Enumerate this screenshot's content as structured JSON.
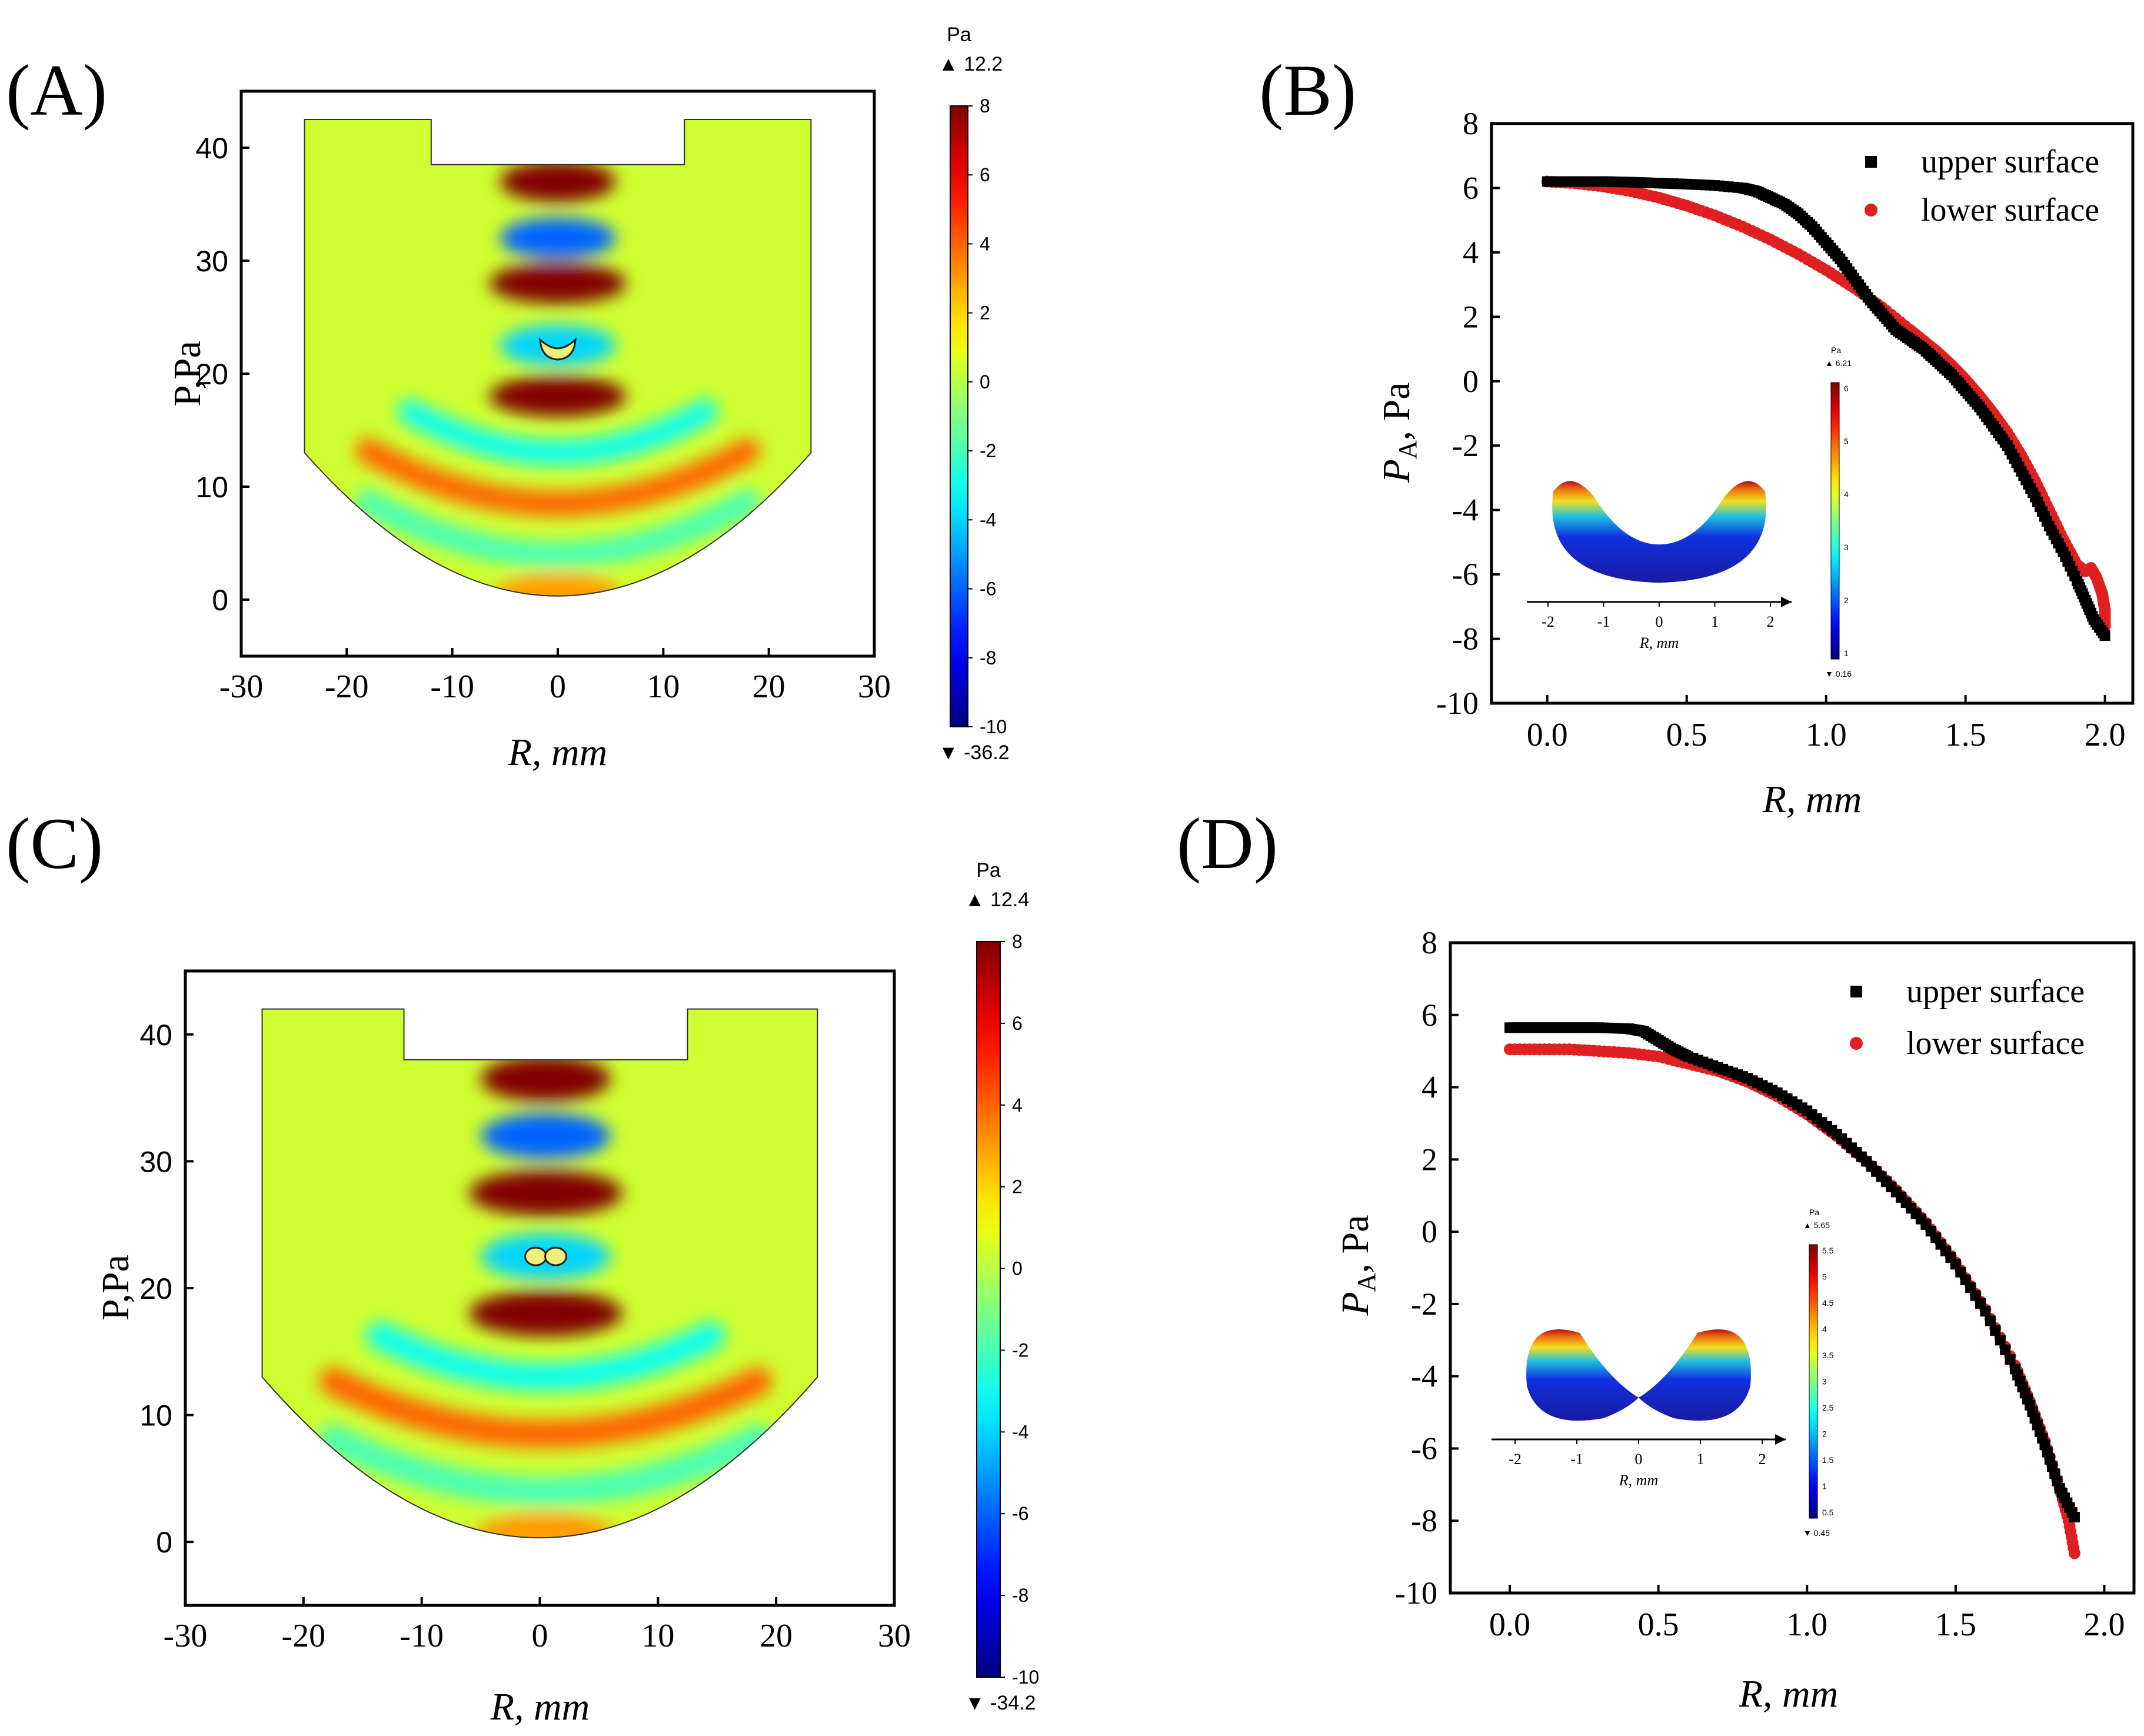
{
  "panels": [
    {
      "label": "(A)",
      "chart_data": {
        "type": "heatmap",
        "xlabel": "R, mm",
        "ylabel": "P,Pa",
        "xlim": [
          -30,
          30
        ],
        "ylim": [
          -5,
          45
        ],
        "xticks": [
          -30,
          -20,
          -10,
          0,
          10,
          20,
          30
        ],
        "yticks": [
          0,
          10,
          20,
          30,
          40
        ],
        "colorbar": {
          "unit": "Pa",
          "max_label": "▲ 12.2",
          "min_label": "▼ -36.2",
          "ticks": [
            8,
            6,
            4,
            2,
            0,
            -2,
            -4,
            -6,
            -8,
            -10
          ],
          "range": [
            -10,
            8
          ]
        },
        "field": {
          "domain_x": [
            -24,
            24
          ],
          "domain_top": 42.5,
          "transducer_x": [
            -12,
            12
          ],
          "transducer_face_y": 38.5,
          "arc_bottom_y": 0,
          "wall_y": 13,
          "bands": [
            {
              "y": 37,
              "value": 8,
              "half_width": 5.5
            },
            {
              "y": 32,
              "value": -6,
              "half_width": 5.5
            },
            {
              "y": 28,
              "value": 8,
              "half_width": 6.5
            },
            {
              "y": 22.5,
              "value": -4,
              "half_width": 5.5
            },
            {
              "y": 18,
              "value": 8,
              "half_width": 6.5
            },
            {
              "y": 13,
              "value": -3,
              "half_width": 14
            },
            {
              "y": 8.5,
              "value": 4,
              "half_width": 18
            },
            {
              "y": 4,
              "value": -2,
              "half_width": 18
            },
            {
              "y": 0.5,
              "value": 3,
              "half_width": 6
            }
          ],
          "droplet": {
            "x": 0,
            "y": 22.5,
            "shape": "cup"
          }
        }
      }
    },
    {
      "label": "(B)",
      "chart_data": {
        "type": "scatter",
        "xlabel": "R, mm",
        "ylabel": "P_A, Pa",
        "xlim": [
          -0.2,
          2.1
        ],
        "ylim": [
          -10,
          8
        ],
        "xticks": [
          0.0,
          0.5,
          1.0,
          1.5,
          2.0
        ],
        "xtick_labels": [
          "0.0",
          "0.5",
          "1.0",
          "1.5",
          "2.0"
        ],
        "yticks": [
          8,
          6,
          4,
          2,
          0,
          -2,
          -4,
          -6,
          -8,
          -10
        ],
        "series": [
          {
            "name": "upper surface",
            "color": "#000000",
            "marker": "square",
            "x": [
              0,
              0.1,
              0.2,
              0.3,
              0.4,
              0.5,
              0.6,
              0.7,
              0.75,
              0.8,
              0.85,
              0.9,
              0.95,
              1.0,
              1.05,
              1.1,
              1.15,
              1.2,
              1.25,
              1.3,
              1.35,
              1.4,
              1.45,
              1.5,
              1.55,
              1.6,
              1.65,
              1.7,
              1.75,
              1.8,
              1.85,
              1.9,
              1.93,
              1.96,
              2.0
            ],
            "y": [
              6.2,
              6.2,
              6.2,
              6.18,
              6.15,
              6.12,
              6.08,
              6.0,
              5.9,
              5.7,
              5.5,
              5.2,
              4.8,
              4.3,
              3.8,
              3.2,
              2.6,
              2.1,
              1.6,
              1.3,
              1.0,
              0.6,
              0.2,
              -0.3,
              -0.8,
              -1.4,
              -2.0,
              -2.8,
              -3.6,
              -4.5,
              -5.3,
              -6.2,
              -6.8,
              -7.4,
              -7.9
            ]
          },
          {
            "name": "lower surface",
            "color": "#e02020",
            "marker": "circle",
            "x": [
              0,
              0.1,
              0.2,
              0.3,
              0.4,
              0.5,
              0.6,
              0.7,
              0.8,
              0.9,
              1.0,
              1.1,
              1.2,
              1.3,
              1.35,
              1.4,
              1.45,
              1.5,
              1.55,
              1.6,
              1.65,
              1.7,
              1.75,
              1.8,
              1.85,
              1.9,
              1.93,
              1.95,
              1.97,
              1.99,
              2.0,
              2.0
            ],
            "y": [
              6.2,
              6.15,
              6.05,
              5.9,
              5.7,
              5.45,
              5.15,
              4.8,
              4.4,
              3.95,
              3.45,
              2.9,
              2.3,
              1.6,
              1.25,
              0.9,
              0.5,
              0.05,
              -0.45,
              -1.0,
              -1.6,
              -2.3,
              -3.1,
              -4.0,
              -4.9,
              -5.7,
              -5.9,
              -5.8,
              -6.1,
              -6.6,
              -7.1,
              -7.6
            ]
          }
        ],
        "legend": "top-right",
        "inset": {
          "axis_ticks": [
            -2,
            -1,
            0,
            1,
            2
          ],
          "xlabel": "R, mm",
          "unit": "Pa",
          "max_label": "▲ 6.21",
          "min_label": "▼ 0.16",
          "ticks": [
            "6",
            "5",
            "4",
            "3",
            "2",
            "1"
          ],
          "shape": "cup"
        }
      }
    },
    {
      "label": "(C)",
      "chart_data": {
        "type": "heatmap",
        "xlabel": "R, mm",
        "ylabel": "P,Pa",
        "xlim": [
          -30,
          30
        ],
        "ylim": [
          -5,
          45
        ],
        "xticks": [
          -30,
          -20,
          -10,
          0,
          10,
          20,
          30
        ],
        "yticks": [
          0,
          10,
          20,
          30,
          40
        ],
        "colorbar": {
          "unit": "Pa",
          "max_label": "▲ 12.4",
          "min_label": "▼ -34.2",
          "ticks": [
            8,
            6,
            4,
            2,
            0,
            -2,
            -4,
            -6,
            -8,
            -10
          ],
          "range": [
            -10,
            8
          ]
        },
        "field": {
          "domain_x": [
            -23.5,
            23.5
          ],
          "domain_top": 42,
          "transducer_x": [
            -11.5,
            12.5
          ],
          "transducer_face_y": 38,
          "arc_bottom_y": 0,
          "wall_y": 13,
          "bands": [
            {
              "y": 36.5,
              "value": 8,
              "half_width": 5.5
            },
            {
              "y": 32,
              "value": -6,
              "half_width": 5.5
            },
            {
              "y": 27.5,
              "value": 8,
              "half_width": 6.5
            },
            {
              "y": 22.5,
              "value": -4,
              "half_width": 5.5
            },
            {
              "y": 18,
              "value": 8,
              "half_width": 6.5
            },
            {
              "y": 13,
              "value": -3,
              "half_width": 14
            },
            {
              "y": 8.5,
              "value": 4,
              "half_width": 18
            },
            {
              "y": 4,
              "value": -2,
              "half_width": 18
            },
            {
              "y": 0.5,
              "value": 3,
              "half_width": 6
            }
          ],
          "droplet": {
            "x": 0.5,
            "y": 22.5,
            "shape": "pinch"
          }
        }
      }
    },
    {
      "label": "(D)",
      "chart_data": {
        "type": "scatter",
        "xlabel": "R, mm",
        "ylabel": "P_A, Pa",
        "xlim": [
          -0.2,
          2.1
        ],
        "ylim": [
          -10,
          8
        ],
        "xticks": [
          0.0,
          0.5,
          1.0,
          1.5,
          2.0
        ],
        "xtick_labels": [
          "0.0",
          "0.5",
          "1.0",
          "1.5",
          "2.0"
        ],
        "yticks": [
          8,
          6,
          4,
          2,
          0,
          -2,
          -4,
          -6,
          -8,
          -10
        ],
        "series": [
          {
            "name": "upper surface",
            "color": "#000000",
            "marker": "square",
            "x": [
              0,
              0.1,
              0.2,
              0.3,
              0.4,
              0.45,
              0.5,
              0.55,
              0.6,
              0.7,
              0.8,
              0.9,
              1.0,
              1.1,
              1.2,
              1.3,
              1.4,
              1.5,
              1.6,
              1.7,
              1.75,
              1.8,
              1.85,
              1.9
            ],
            "y": [
              5.65,
              5.65,
              5.65,
              5.65,
              5.62,
              5.55,
              5.3,
              5.05,
              4.85,
              4.55,
              4.25,
              3.85,
              3.35,
              2.7,
              1.95,
              1.1,
              0.2,
              -0.9,
              -2.2,
              -3.8,
              -4.8,
              -5.9,
              -7.1,
              -7.9
            ]
          },
          {
            "name": "lower surface",
            "color": "#e02020",
            "marker": "circle",
            "x": [
              0,
              0.1,
              0.2,
              0.3,
              0.4,
              0.5,
              0.6,
              0.7,
              0.8,
              0.9,
              1.0,
              1.1,
              1.2,
              1.3,
              1.4,
              1.5,
              1.6,
              1.7,
              1.75,
              1.8,
              1.85,
              1.88,
              1.9
            ],
            "y": [
              5.05,
              5.05,
              5.05,
              5.0,
              4.95,
              4.85,
              4.65,
              4.45,
              4.15,
              3.75,
              3.25,
              2.65,
              1.95,
              1.15,
              0.25,
              -0.85,
              -2.15,
              -3.7,
              -4.7,
              -5.8,
              -7.1,
              -8.0,
              -8.9
            ]
          }
        ],
        "legend": "top-right",
        "inset": {
          "axis_ticks": [
            -2,
            -1,
            0,
            1,
            2
          ],
          "xlabel": "R, mm",
          "unit": "Pa",
          "max_label": "▲ 5.65",
          "min_label": "▼ 0.45",
          "ticks": [
            "5.5",
            "5",
            "4.5",
            "4",
            "3.5",
            "3",
            "2.5",
            "2",
            "1.5",
            "1",
            "0.5"
          ],
          "shape": "pinch"
        }
      }
    }
  ]
}
